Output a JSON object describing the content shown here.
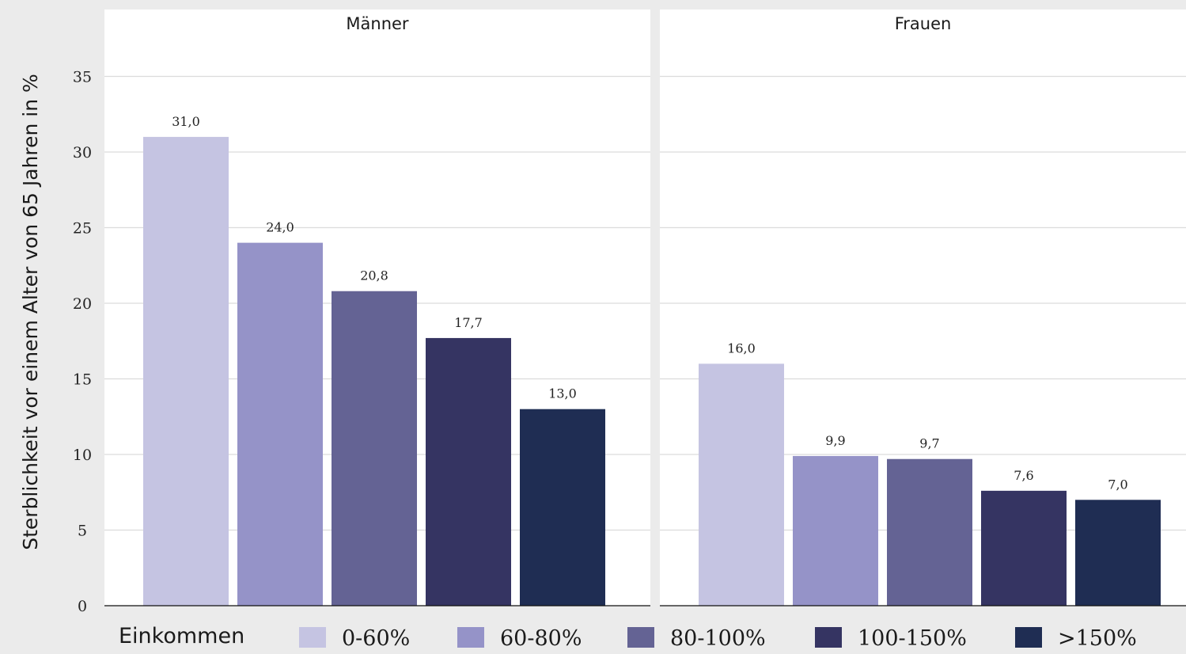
{
  "chart_data": {
    "type": "bar",
    "ylabel": "Sterblichkeit vor einem Alter von 65 Jahren in %",
    "ylim": [
      0,
      38
    ],
    "yticks": [
      0,
      5,
      10,
      15,
      20,
      25,
      30,
      35
    ],
    "ytick_labels": [
      "0",
      "5",
      "10",
      "15",
      "20",
      "25",
      "30",
      "35"
    ],
    "grid": true,
    "legend": {
      "title": "Einkommen",
      "position": "bottom",
      "entries": [
        "0-60%",
        "60-80%",
        "80-100%",
        "100-150%",
        ">150%"
      ]
    },
    "categories": [
      "0-60%",
      "60-80%",
      "80-100%",
      "100-150%",
      ">150%"
    ],
    "colors": [
      "#c5c4e2",
      "#9593c8",
      "#646394",
      "#353462",
      "#1f2d53"
    ],
    "panels": [
      {
        "title": "Männer",
        "values": [
          31.0,
          24.0,
          20.8,
          17.7,
          13.0
        ],
        "labels": [
          "31,0",
          "24,0",
          "20,8",
          "17,7",
          "13,0"
        ]
      },
      {
        "title": "Frauen",
        "values": [
          16.0,
          9.9,
          9.7,
          7.6,
          7.0
        ],
        "labels": [
          "16,0",
          "9,9",
          "9,7",
          "7,6",
          "7,0"
        ]
      }
    ]
  }
}
